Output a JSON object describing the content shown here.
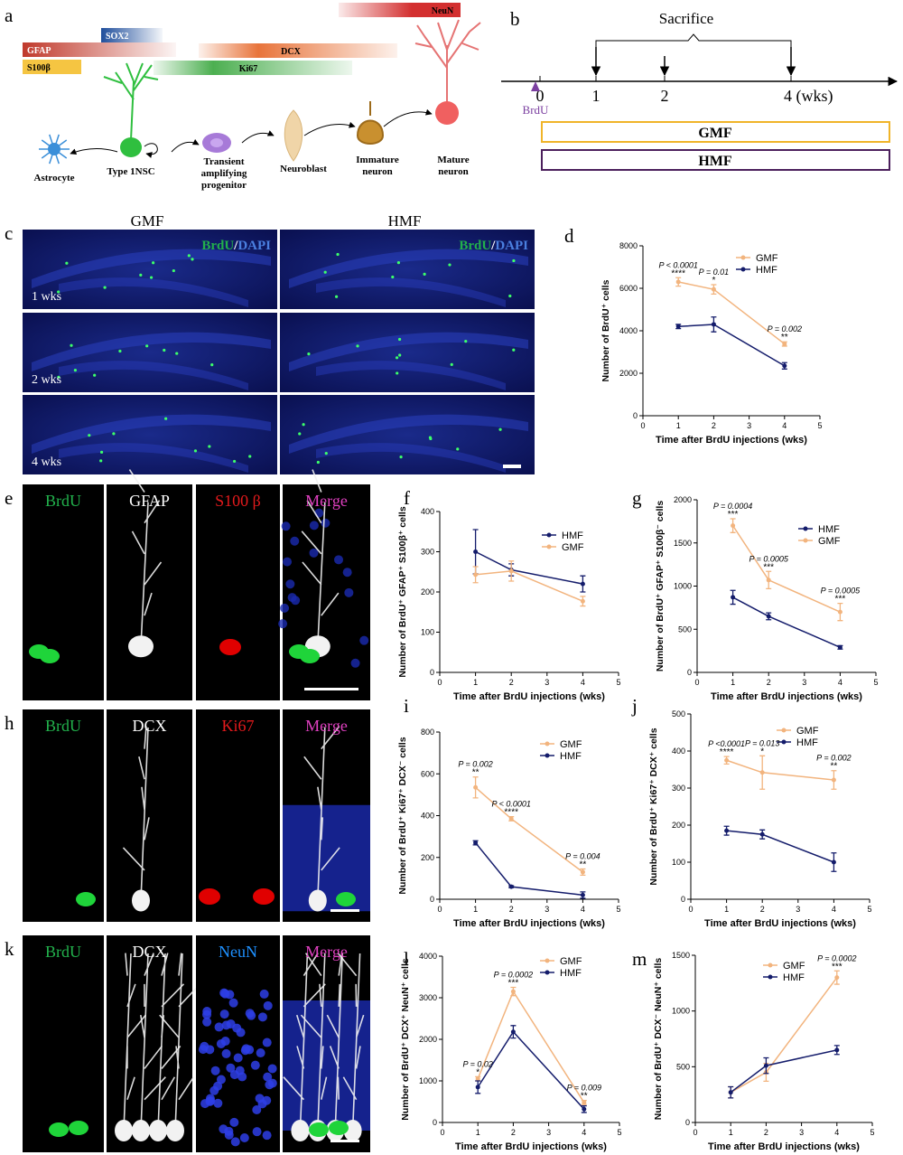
{
  "diagram": {
    "a": {
      "label": "a",
      "markers": [
        "GFAP",
        "SOX2",
        "S100β",
        "DCX",
        "Ki67",
        "NeuN"
      ],
      "cells": [
        "Astrocyte",
        "Type 1NSC",
        "Transient amplifying progenitor",
        "Neuroblast",
        "Immature neuron",
        "Mature neuron"
      ]
    },
    "b": {
      "label": "b",
      "title": "Sacrifice",
      "ticks": [
        "0",
        "1",
        "2",
        "4 (wks)"
      ],
      "injection": "BrdU",
      "groups": [
        "GMF",
        "HMF"
      ]
    },
    "c": {
      "label": "c",
      "columns": [
        "GMF",
        "HMF"
      ],
      "stain": [
        "BrdU",
        "/",
        "DAPI"
      ],
      "rows": [
        "1 wks",
        "2 wks",
        "4 wks"
      ]
    },
    "e": {
      "label": "e",
      "channels": [
        "BrdU",
        "GFAP",
        "S100 β",
        "Merge"
      ],
      "channel_colors": [
        "#22b14c",
        "#ffffff",
        "#e41a1c",
        "#e040c0"
      ]
    },
    "h": {
      "label": "h",
      "channels": [
        "BrdU",
        "DCX",
        "Ki67",
        "Merge"
      ],
      "channel_colors": [
        "#22b14c",
        "#ffffff",
        "#e41a1c",
        "#e040c0"
      ]
    },
    "k": {
      "label": "k",
      "channels": [
        "BrdU",
        "DCX",
        "NeuN",
        "Merge"
      ],
      "channel_colors": [
        "#22b14c",
        "#ffffff",
        "#1e90ff",
        "#e040c0"
      ]
    }
  },
  "chart_data": [
    {
      "type": "line",
      "panel": "d",
      "ylabel": "Number of BrdU⁺ cells",
      "xlabel": "Time after BrdU injections (wks)",
      "x": [
        1,
        2,
        4
      ],
      "xlim": [
        0,
        5
      ],
      "xticks": [
        0,
        1,
        2,
        3,
        4,
        5
      ],
      "ylim": [
        0,
        8000
      ],
      "yticks": [
        0,
        2000,
        4000,
        6000,
        8000
      ],
      "legend": "top-right",
      "series": [
        {
          "name": "GMF",
          "color": "#f2b47e",
          "values": [
            6300,
            5950,
            3380
          ],
          "errors": [
            200,
            220,
            100
          ]
        },
        {
          "name": "HMF",
          "color": "#141c6b",
          "values": [
            4200,
            4300,
            2350
          ],
          "errors": [
            100,
            350,
            150
          ]
        }
      ],
      "p_labels": [
        "P < 0.0001",
        "P = 0.01",
        "P = 0.002"
      ],
      "stars": [
        "****",
        "*",
        "**"
      ]
    },
    {
      "type": "line",
      "panel": "f",
      "ylabel": "Number of BrdU⁺ GFAP⁺ S100β⁺ cells",
      "xlabel": "Time after BrdU injections (wks)",
      "x": [
        1,
        2,
        4
      ],
      "xlim": [
        0,
        5
      ],
      "xticks": [
        0,
        1,
        2,
        3,
        4,
        5
      ],
      "ylim": [
        0,
        400
      ],
      "yticks": [
        0,
        100,
        200,
        300,
        400
      ],
      "legend": "top-right",
      "series": [
        {
          "name": "HMF",
          "color": "#141c6b",
          "values": [
            300,
            255,
            220
          ],
          "errors": [
            55,
            15,
            20
          ]
        },
        {
          "name": "GMF",
          "color": "#f2b47e",
          "values": [
            243,
            252,
            177
          ],
          "errors": [
            20,
            25,
            12
          ]
        }
      ]
    },
    {
      "type": "line",
      "panel": "g",
      "ylabel": "Number of BrdU⁺ GFAP⁺ S100β⁻ cells",
      "xlabel": "Time after BrdU injections (wks)",
      "x": [
        1,
        2,
        4
      ],
      "xlim": [
        0,
        5
      ],
      "xticks": [
        0,
        1,
        2,
        3,
        4,
        5
      ],
      "ylim": [
        0,
        2000
      ],
      "yticks": [
        0,
        500,
        1000,
        1500,
        2000
      ],
      "legend": "top-right",
      "series": [
        {
          "name": "HMF",
          "color": "#141c6b",
          "values": [
            870,
            650,
            290
          ],
          "errors": [
            80,
            40,
            20
          ]
        },
        {
          "name": "GMF",
          "color": "#f2b47e",
          "values": [
            1700,
            1070,
            700
          ],
          "errors": [
            80,
            100,
            100
          ]
        }
      ],
      "p_labels": [
        "P = 0.0004",
        "P = 0.0005",
        "P = 0.0005"
      ],
      "stars": [
        "***",
        "***",
        "***"
      ]
    },
    {
      "type": "line",
      "panel": "i",
      "ylabel": "Number of BrdU⁺ Ki67⁺ DCX⁻ cells",
      "xlabel": "Time after BrdU injections (wks)",
      "x": [
        1,
        2,
        4
      ],
      "xlim": [
        0,
        5
      ],
      "xticks": [
        0,
        1,
        2,
        3,
        4,
        5
      ],
      "ylim": [
        0,
        800
      ],
      "yticks": [
        0,
        200,
        400,
        600,
        800
      ],
      "legend": "top-right",
      "series": [
        {
          "name": "GMF",
          "color": "#f2b47e",
          "values": [
            535,
            385,
            130
          ],
          "errors": [
            50,
            10,
            15
          ]
        },
        {
          "name": "HMF",
          "color": "#141c6b",
          "values": [
            270,
            60,
            20
          ],
          "errors": [
            10,
            5,
            15
          ]
        }
      ],
      "p_labels": [
        "P = 0.002",
        "P < 0.0001",
        "P = 0.004"
      ],
      "stars": [
        "**",
        "****",
        "**"
      ]
    },
    {
      "type": "line",
      "panel": "j",
      "ylabel": "Number of BrdU⁺ Ki67⁺ DCX⁺ cells",
      "xlabel": "Time after BrdU injections (wks)",
      "x": [
        1,
        2,
        4
      ],
      "xlim": [
        0,
        5
      ],
      "xticks": [
        0,
        1,
        2,
        3,
        4,
        5
      ],
      "ylim": [
        0,
        500
      ],
      "yticks": [
        0,
        100,
        200,
        300,
        400,
        500
      ],
      "legend": "top-right",
      "series": [
        {
          "name": "GMF",
          "color": "#f2b47e",
          "values": [
            375,
            342,
            322
          ],
          "errors": [
            10,
            45,
            25
          ]
        },
        {
          "name": "HMF",
          "color": "#141c6b",
          "values": [
            185,
            175,
            100
          ],
          "errors": [
            12,
            12,
            25
          ]
        }
      ],
      "p_labels": [
        "P <0.0001",
        "P = 0.013",
        "P = 0.002"
      ],
      "stars": [
        "****",
        "*",
        "**"
      ]
    },
    {
      "type": "line",
      "panel": "l",
      "ylabel": "Number of BrdU⁺ DCX⁺ NeuN⁺ cells",
      "xlabel": "Time after BrdU injections (wks)",
      "x": [
        1,
        2,
        4
      ],
      "xlim": [
        0,
        5
      ],
      "xticks": [
        0,
        1,
        2,
        3,
        4,
        5
      ],
      "ylim": [
        0,
        4000
      ],
      "yticks": [
        0,
        1000,
        2000,
        3000,
        4000
      ],
      "legend": "top-right",
      "series": [
        {
          "name": "GMF",
          "color": "#f2b47e",
          "values": [
            1050,
            3150,
            480
          ],
          "errors": [
            50,
            100,
            50
          ]
        },
        {
          "name": "HMF",
          "color": "#141c6b",
          "values": [
            850,
            2180,
            320
          ],
          "errors": [
            150,
            150,
            80
          ]
        }
      ],
      "p_labels": [
        "P = 0.02",
        "P = 0.0002",
        "P = 0.009"
      ],
      "stars": [
        "*",
        "***",
        "**"
      ]
    },
    {
      "type": "line",
      "panel": "m",
      "ylabel": "Number of BrdU⁺ DCX⁻ NeuN⁺ cells",
      "xlabel": "Time after BrdU injections (wks)",
      "x": [
        1,
        2,
        4
      ],
      "xlim": [
        0,
        5
      ],
      "xticks": [
        0,
        1,
        2,
        3,
        4,
        5
      ],
      "ylim": [
        0,
        1500
      ],
      "yticks": [
        0,
        500,
        1000,
        1500
      ],
      "legend": "top-right",
      "series": [
        {
          "name": "GMF",
          "color": "#f2b47e",
          "values": [
            270,
            450,
            1300
          ],
          "errors": [
            50,
            80,
            60
          ]
        },
        {
          "name": "HMF",
          "color": "#141c6b",
          "values": [
            270,
            510,
            650
          ],
          "errors": [
            50,
            70,
            40
          ]
        }
      ],
      "p_labels": [
        null,
        null,
        "P = 0.0002"
      ],
      "stars": [
        null,
        null,
        "***"
      ]
    }
  ]
}
